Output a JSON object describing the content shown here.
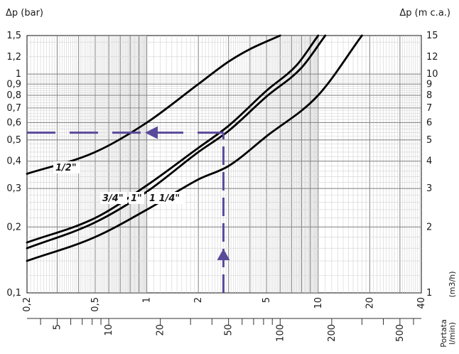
{
  "chart_data": {
    "type": "line",
    "scale": "log-log",
    "grid": true,
    "title": "",
    "left_axis_label": "Δp (bar)",
    "right_axis_label": "Δp (m c.a.)",
    "x_axis_label": "Portata",
    "x_unit_primary": "(m3/h)",
    "x_unit_secondary": "l/min)",
    "xlim_m3h": [
      0.2,
      40
    ],
    "ylim_bar": [
      0.1,
      1.5
    ],
    "y_ticks_bar": [
      "1,5",
      "1,2",
      "1",
      "0,9",
      "0,8",
      "0,7",
      "0,6",
      "0,5",
      "0,4",
      "0,3",
      "0,2",
      "0,1"
    ],
    "y_ticks_m": [
      "15",
      "12",
      "10",
      "9",
      "8",
      "7",
      "6",
      "5",
      "4",
      "3",
      "2",
      "1"
    ],
    "x_ticks_m3h": [
      "0,2",
      "0,5",
      "1",
      "2",
      "5",
      "10",
      "20",
      "40"
    ],
    "x_ticks_lmin": [
      "5",
      "10",
      "20",
      "50",
      "100",
      "200",
      "500"
    ],
    "series": [
      {
        "name": "1/2\"",
        "x": [
          0.2,
          0.5,
          1,
          2,
          3,
          4,
          6
        ],
        "y": [
          0.35,
          0.44,
          0.6,
          0.9,
          1.14,
          1.3,
          1.5
        ]
      },
      {
        "name": "3/4\"",
        "x": [
          0.2,
          0.5,
          1,
          2,
          3,
          5,
          7.5,
          10
        ],
        "y": [
          0.17,
          0.22,
          0.31,
          0.46,
          0.58,
          0.84,
          1.1,
          1.5
        ]
      },
      {
        "name": "1\"",
        "x": [
          0.2,
          0.5,
          1,
          2,
          3,
          5,
          8,
          11
        ],
        "y": [
          0.16,
          0.21,
          0.29,
          0.44,
          0.55,
          0.79,
          1.07,
          1.5
        ]
      },
      {
        "name": "1 1/4\"",
        "x": [
          0.2,
          0.5,
          1,
          2,
          3,
          5,
          10,
          18
        ],
        "y": [
          0.14,
          0.18,
          0.24,
          0.33,
          0.38,
          0.52,
          0.8,
          1.5
        ]
      }
    ],
    "example_reading": {
      "flow_m3h": 2.8,
      "dp_bar": 0.54,
      "color": "#5a4a9a"
    }
  }
}
